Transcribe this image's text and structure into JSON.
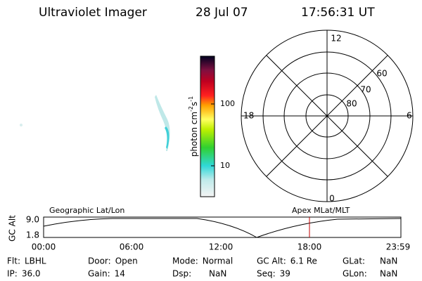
{
  "header": {
    "instrument": "Ultraviolet Imager",
    "date": "28 Jul 07",
    "time": "17:56:31 UT"
  },
  "colorbar": {
    "unit": "photon cm",
    "exp1": "-2",
    "unit2": "s",
    "exp2": "-1",
    "ticks": [
      "100",
      "10"
    ]
  },
  "polar": {
    "mlt_labels": [
      "12",
      "6",
      "0",
      "18"
    ],
    "lat_labels": [
      "60",
      "70",
      "80"
    ]
  },
  "orbit": {
    "axis_label": "GC Alt",
    "y_labels": [
      "9.0",
      "1.8"
    ],
    "left_title": "Geographic Lat/Lon",
    "right_title": "Apex MLat/MLT",
    "time_labels": [
      "00:00",
      "06:00",
      "12:00",
      "18:00",
      "23:59"
    ]
  },
  "info": {
    "rows": [
      [
        [
          "Flt:",
          "LBHL"
        ],
        [
          "Door:",
          "Open"
        ],
        [
          "Mode:",
          "Normal"
        ],
        [
          "GC Alt:",
          "6.1 Re"
        ],
        [
          "GLat:",
          "NaN"
        ]
      ],
      [
        [
          "IP:",
          "36.0"
        ],
        [
          "Gain:",
          "14"
        ],
        [
          "Dsp:",
          "NaN"
        ],
        [
          "Seq:",
          "39"
        ],
        [
          "GLon:",
          "NaN"
        ]
      ]
    ]
  }
}
